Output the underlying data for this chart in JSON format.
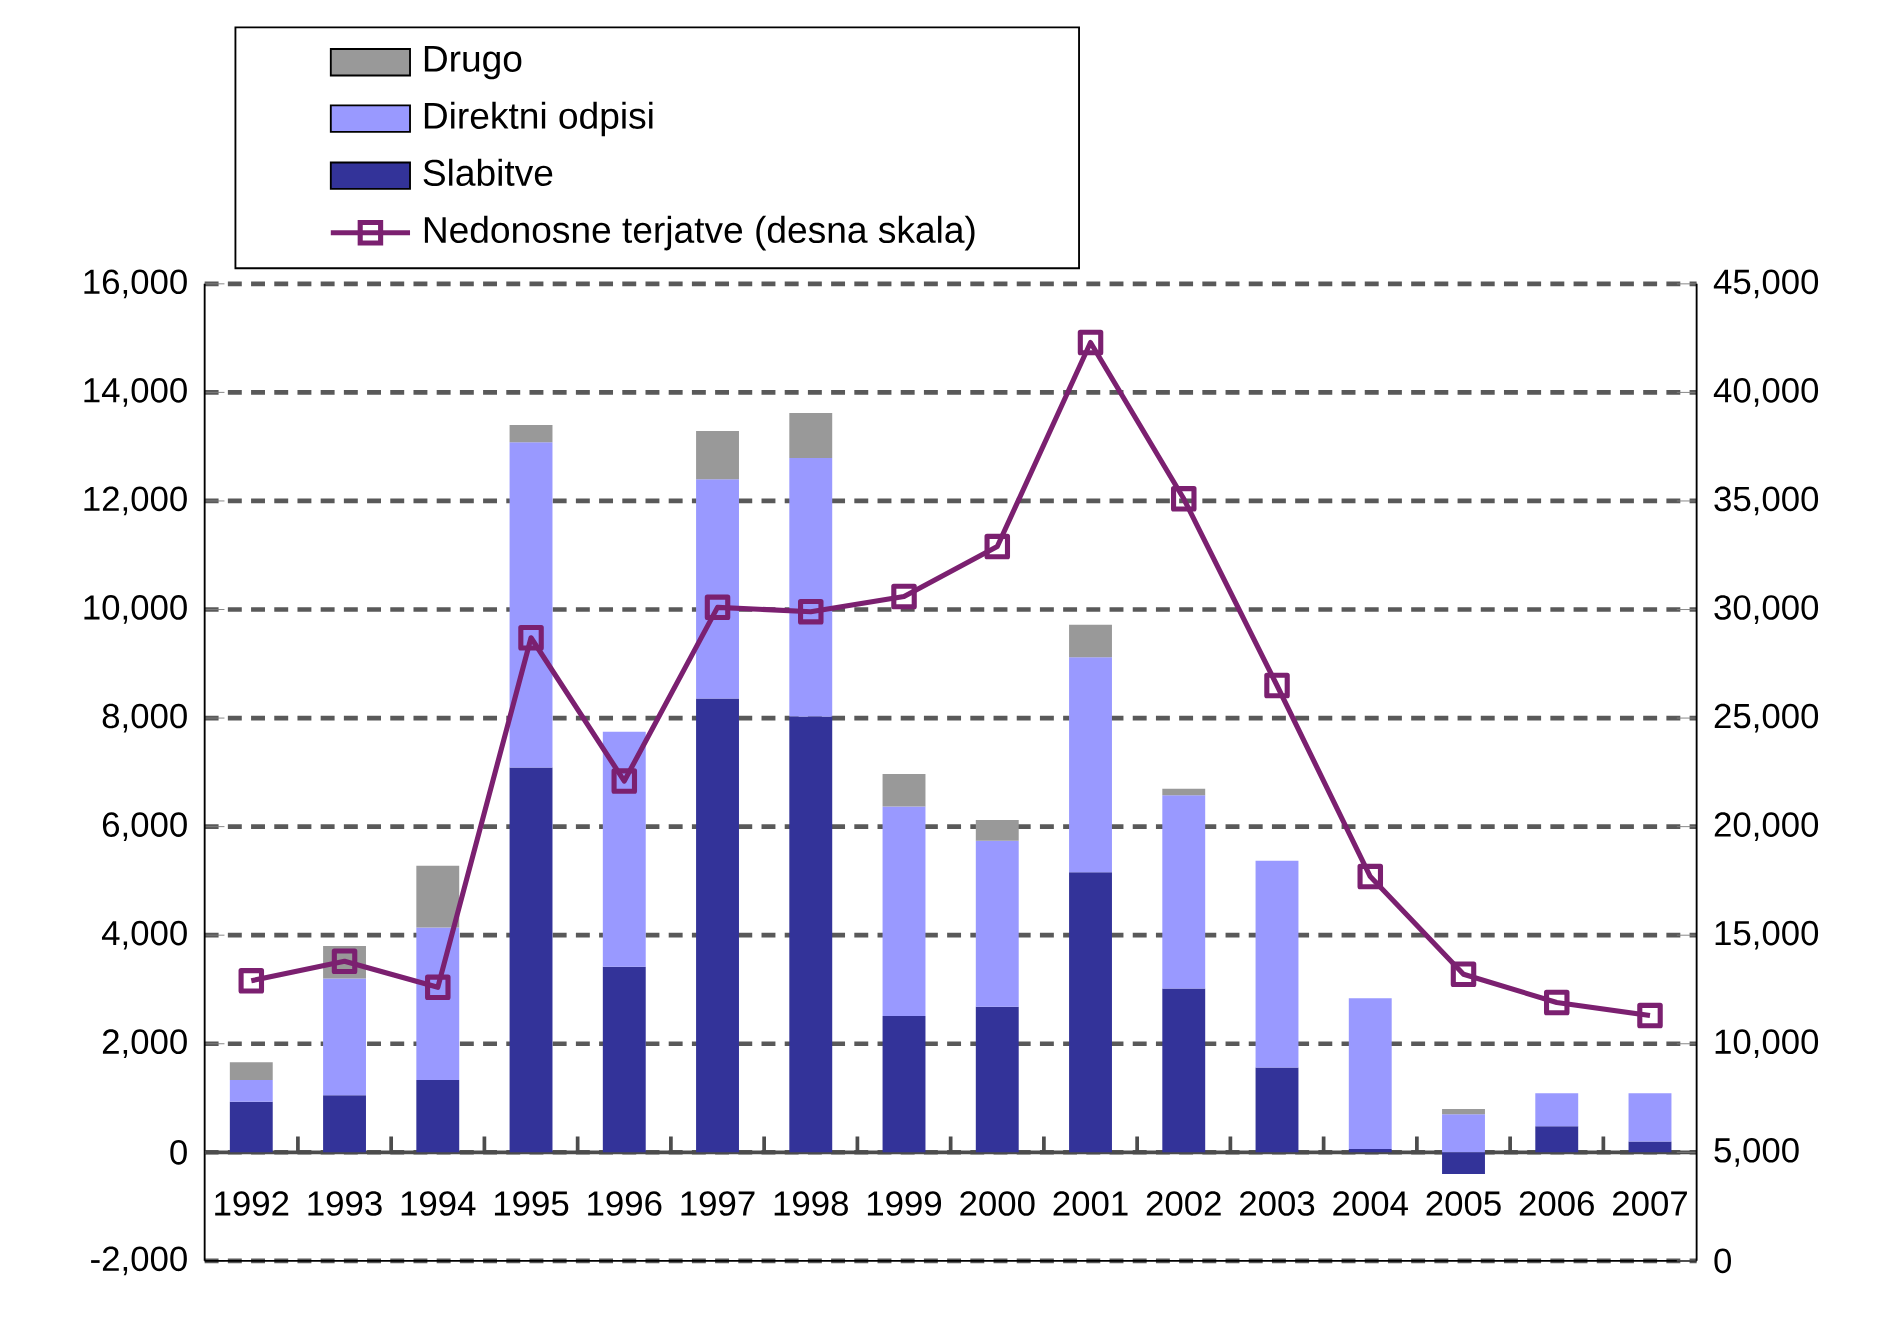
{
  "chart_data": {
    "type": "bar",
    "stacked": true,
    "grid": "y",
    "legend": "top left",
    "categories": [
      "1992",
      "1993",
      "1994",
      "1995",
      "1996",
      "1997",
      "1998",
      "1999",
      "2000",
      "2001",
      "2002",
      "2003",
      "2004",
      "2005",
      "2006",
      "2007"
    ],
    "series": [
      {
        "name": "Slabitve",
        "color": "#333399",
        "values": [
          930,
          1050,
          1330,
          7090,
          3420,
          8360,
          8030,
          2510,
          2680,
          5160,
          3020,
          1560,
          60,
          -400,
          480,
          200
        ]
      },
      {
        "name": "Direktni odpisi",
        "color": "#9999ff",
        "values": [
          400,
          2150,
          2810,
          5990,
          4330,
          4040,
          4760,
          3860,
          3060,
          3960,
          3560,
          3810,
          2780,
          700,
          610,
          890
        ]
      },
      {
        "name": "Drugo",
        "color": "#999999",
        "values": [
          330,
          600,
          1140,
          320,
          null,
          890,
          830,
          600,
          380,
          600,
          120,
          null,
          null,
          100,
          null,
          null
        ]
      },
      {
        "name": "Nedonosne terjatve (desna skala)",
        "type": "line",
        "axis": "y2",
        "marker": "square",
        "color": "#7b2070",
        "values": [
          12900,
          13800,
          12600,
          28700,
          22100,
          30100,
          29900,
          30600,
          32900,
          42300,
          35100,
          26500,
          17700,
          13200,
          11900,
          11300
        ]
      }
    ],
    "ylim": [
      -2000,
      16000
    ],
    "yticks": [
      {
        "value": -2000,
        "label": "-2,000"
      },
      0,
      {
        "value": 2000,
        "label": "2,000"
      },
      {
        "value": 4000,
        "label": "4,000"
      },
      {
        "value": 6000,
        "label": "6,000"
      },
      {
        "value": 8000,
        "label": "8,000"
      },
      {
        "value": 10000,
        "label": "10,000"
      },
      {
        "value": 12000,
        "label": "12,000"
      },
      {
        "value": 14000,
        "label": "14,000"
      },
      {
        "value": 16000,
        "label": "16,000"
      }
    ],
    "y2lim": [
      0,
      45000
    ],
    "y2ticks": [
      0,
      {
        "value": 5000,
        "label": "5,000"
      },
      {
        "value": 10000,
        "label": "10,000"
      },
      {
        "value": 15000,
        "label": "15,000"
      },
      {
        "value": 20000,
        "label": "20,000"
      },
      {
        "value": 25000,
        "label": "25,000"
      },
      {
        "value": 30000,
        "label": "30,000"
      },
      {
        "value": 35000,
        "label": "35,000"
      },
      {
        "value": 40000,
        "label": "40,000"
      },
      {
        "value": 45000,
        "label": "45,000"
      }
    ]
  }
}
